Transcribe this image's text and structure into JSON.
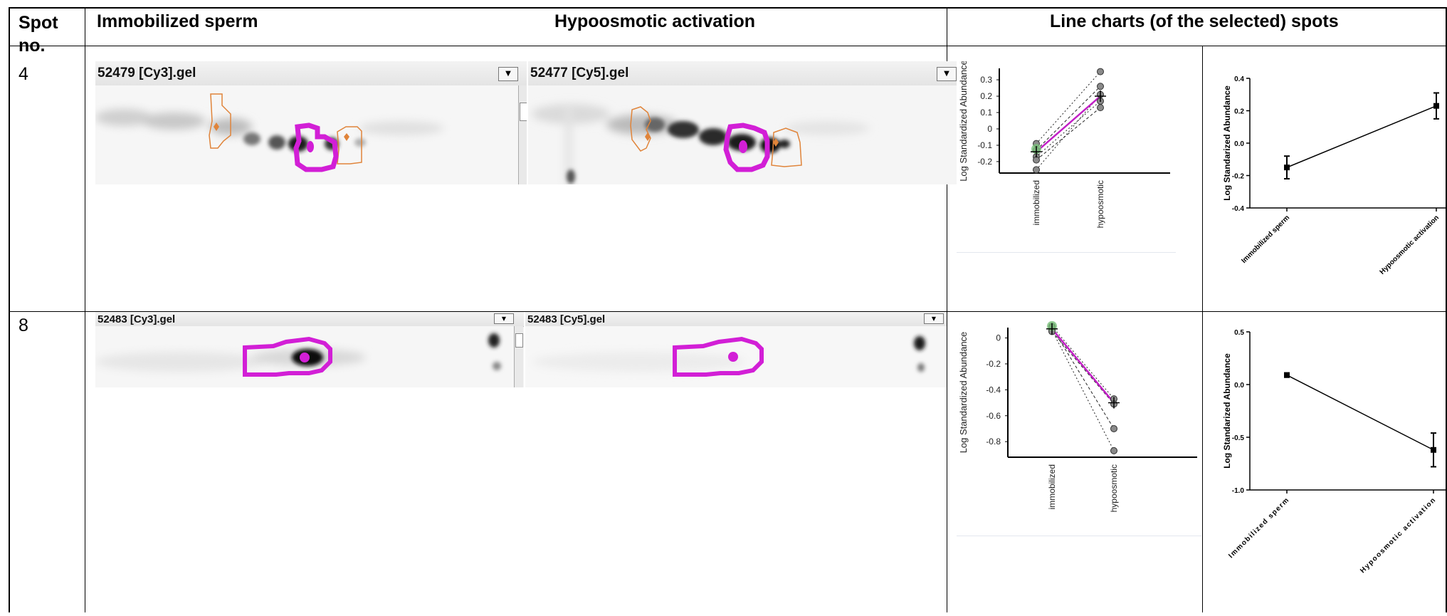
{
  "header": {
    "spot_no": "Spot no.",
    "spot_no_line1": "Spot",
    "spot_no_line2": "no.",
    "immobilized": "Immobilized sperm",
    "hypoosmotic": "Hypoosmotic activation",
    "line_charts": "Line charts (of the selected) spots"
  },
  "rows": [
    {
      "spot": "4",
      "gel_left": {
        "title": "52479 [Cy3].gel",
        "dropdown": "▼"
      },
      "gel_right": {
        "title": "52477 [Cy5].gel",
        "dropdown": "▼"
      }
    },
    {
      "spot": "8",
      "gel_left": {
        "title": "52483 [Cy3].gel",
        "dropdown": "▼"
      },
      "gel_right": {
        "title": "52483 [Cy5].gel",
        "dropdown": "▼"
      }
    }
  ],
  "colors": {
    "spot_outline": "#d21fd6",
    "neighbor_outline": "#e0843a",
    "mean_line": "#c21fc6",
    "replicate_point": "#8a8a8a",
    "mean_marker_fill": "#79c07a"
  },
  "chart_data": [
    {
      "type": "line",
      "panel": "spot-4-software",
      "ylabel": "Log Standardized Abundance",
      "categories": [
        "immobilized",
        "hypoosmotic"
      ],
      "yticks": [
        "0.3",
        "0.2",
        "0.1",
        "0",
        "-0.1",
        "-0.2"
      ],
      "ylim": [
        -0.27,
        0.37
      ],
      "mean": [
        -0.14,
        0.2
      ],
      "replicates": [
        [
          -0.09,
          0.35
        ],
        [
          -0.13,
          0.26
        ],
        [
          -0.17,
          0.17
        ],
        [
          -0.19,
          0.13
        ],
        [
          -0.25,
          0.21
        ]
      ]
    },
    {
      "type": "line",
      "panel": "spot-4-summary",
      "ylabel": "Log Standarized Abundance",
      "categories": [
        "Immobilized sperm",
        "Hypoosmotic activation"
      ],
      "yticks": [
        "0.4",
        "0.2",
        "0.0",
        "-0.2",
        "-0.4"
      ],
      "ylim": [
        -0.4,
        0.4
      ],
      "values": [
        -0.15,
        0.23
      ],
      "errors": [
        0.07,
        0.08
      ]
    },
    {
      "type": "line",
      "panel": "spot-8-software",
      "ylabel": "Log Standardized Abundance",
      "categories": [
        "immobilized",
        "hypoosmotic"
      ],
      "yticks": [
        "0",
        "-0.2",
        "-0.4",
        "-0.6",
        "-0.8"
      ],
      "ylim": [
        -0.92,
        0.08
      ],
      "mean": [
        0.07,
        -0.5
      ],
      "replicates": [
        [
          0.09,
          -0.47
        ],
        [
          0.08,
          -0.7
        ],
        [
          0.06,
          -0.87
        ],
        [
          0.05,
          -0.51
        ]
      ]
    },
    {
      "type": "line",
      "panel": "spot-8-summary",
      "ylabel": "Log Standarized Abundance",
      "categories": [
        "Immobilized sperm",
        "Hypoosmotic activation"
      ],
      "yticks": [
        "0.5",
        "0.0",
        "-0.5",
        "-1.0"
      ],
      "ylim": [
        -1.0,
        0.5
      ],
      "values": [
        0.09,
        -0.62
      ],
      "errors": [
        0.02,
        0.16
      ]
    }
  ]
}
